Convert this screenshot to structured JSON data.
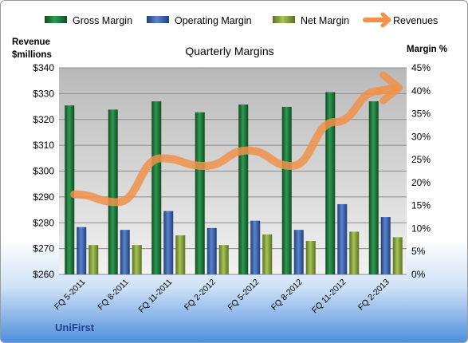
{
  "chart_data": {
    "type": "bar",
    "title": "Quarterly Margins",
    "categories": [
      "FQ 5-2011",
      "FQ 8-2011",
      "FQ 11-2011",
      "FQ 2-2012",
      "FQ 5-2012",
      "FQ 8-2012",
      "FQ 11-2012",
      "FQ 2-2013"
    ],
    "ylabel_left": "Revenue\n$millions",
    "ylabel_right": "Margin %",
    "ylim_left": [
      260,
      340
    ],
    "ylim_right": [
      0,
      45
    ],
    "yticks_left": [
      "$340",
      "$330",
      "$320",
      "$310",
      "$300",
      "$290",
      "$280",
      "$270",
      "$260"
    ],
    "yticks_right": [
      "45%",
      "40%",
      "35%",
      "30%",
      "25%",
      "20%",
      "15%",
      "10%",
      "5%",
      "0%"
    ],
    "series": [
      {
        "name": "Gross Margin",
        "type": "bar",
        "axis": "right",
        "color": "#1e7a3c",
        "values": [
          36.8,
          35.9,
          37.7,
          35.3,
          37.0,
          36.5,
          39.7,
          37.7
        ]
      },
      {
        "name": "Operating Margin",
        "type": "bar",
        "axis": "right",
        "color": "#3a63b0",
        "values": [
          10.3,
          9.7,
          13.8,
          10.1,
          11.7,
          9.7,
          15.3,
          12.5
        ]
      },
      {
        "name": "Net Margin",
        "type": "bar",
        "axis": "right",
        "color": "#8eaa3a",
        "values": [
          6.4,
          6.4,
          8.5,
          6.4,
          8.7,
          7.3,
          9.3,
          8.1
        ]
      },
      {
        "name": "Revenues",
        "type": "line",
        "axis": "left",
        "color": "#f0924a",
        "values": [
          291,
          288,
          305,
          302,
          308,
          302,
          319,
          331
        ]
      }
    ],
    "grid": true,
    "legend": "top"
  },
  "company": "UniFirst"
}
